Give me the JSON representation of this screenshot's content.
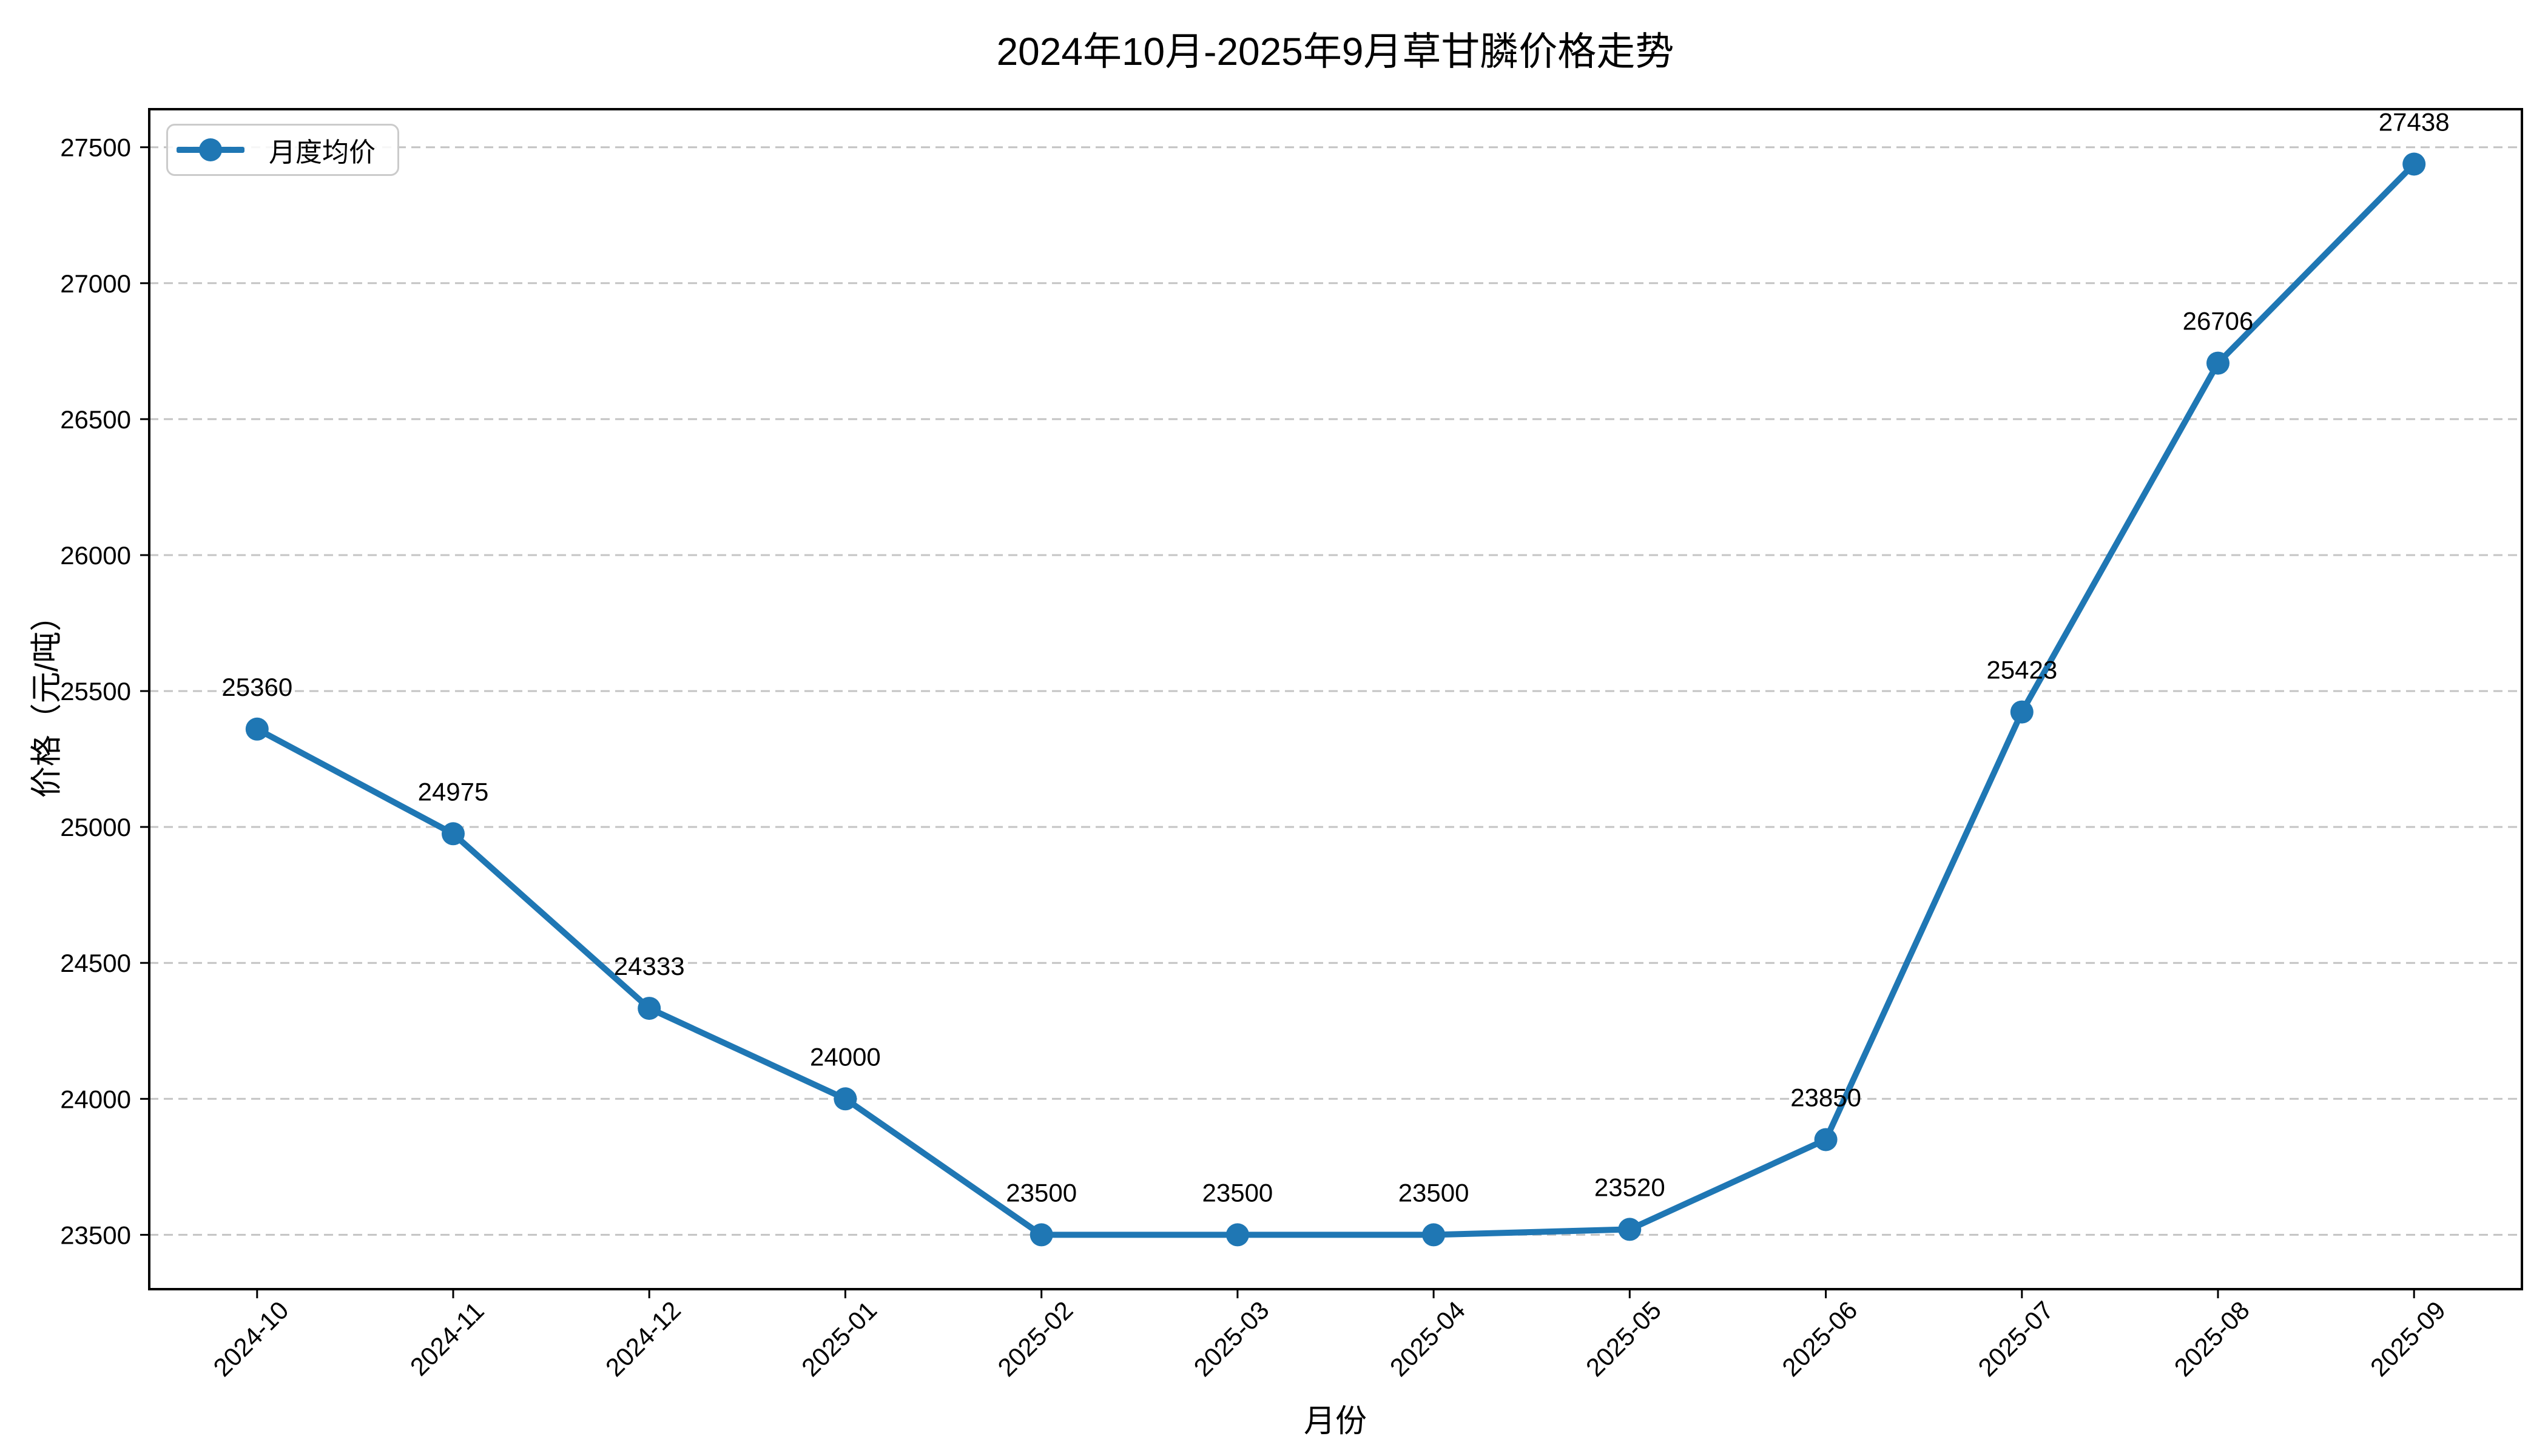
{
  "title": "2024年10月-2025年9月草甘膦价格走势",
  "legend": {
    "label": "月度均价",
    "position": "upper left"
  },
  "axes": {
    "x_label": "月份",
    "y_label": "价格（元/吨）"
  },
  "chart_data": {
    "type": "line",
    "title": "2024年10月-2025年9月草甘膦价格走势",
    "xlabel": "月份",
    "ylabel": "价格（元/吨）",
    "categories": [
      "2024-10",
      "2024-11",
      "2024-12",
      "2025-01",
      "2025-02",
      "2025-03",
      "2025-04",
      "2025-05",
      "2025-06",
      "2025-07",
      "2025-08",
      "2025-09"
    ],
    "series": [
      {
        "name": "月度均价",
        "values": [
          25360,
          24975,
          24333,
          24000,
          23500,
          23500,
          23500,
          23520,
          23850,
          25423,
          26706,
          27438
        ]
      }
    ],
    "point_labels": [
      "25360",
      "24975",
      "24333",
      "24000",
      "23500",
      "23500",
      "23500",
      "23520",
      "23850",
      "25423",
      "26706",
      "27438"
    ],
    "yticks": [
      23500,
      24000,
      24500,
      25000,
      25500,
      26000,
      26500,
      27000,
      27500
    ],
    "ylim": [
      23300,
      27640
    ],
    "grid": "horizontal-dashed",
    "legend_position": "upper left",
    "marker": "circle",
    "colors": {
      "line": "#1f77b4",
      "marker": "#1f77b4",
      "grid": "#c4c4c4",
      "spine": "#000000",
      "text": "#000000",
      "legend_border": "#cbcbcb",
      "background": "#ffffff"
    }
  }
}
